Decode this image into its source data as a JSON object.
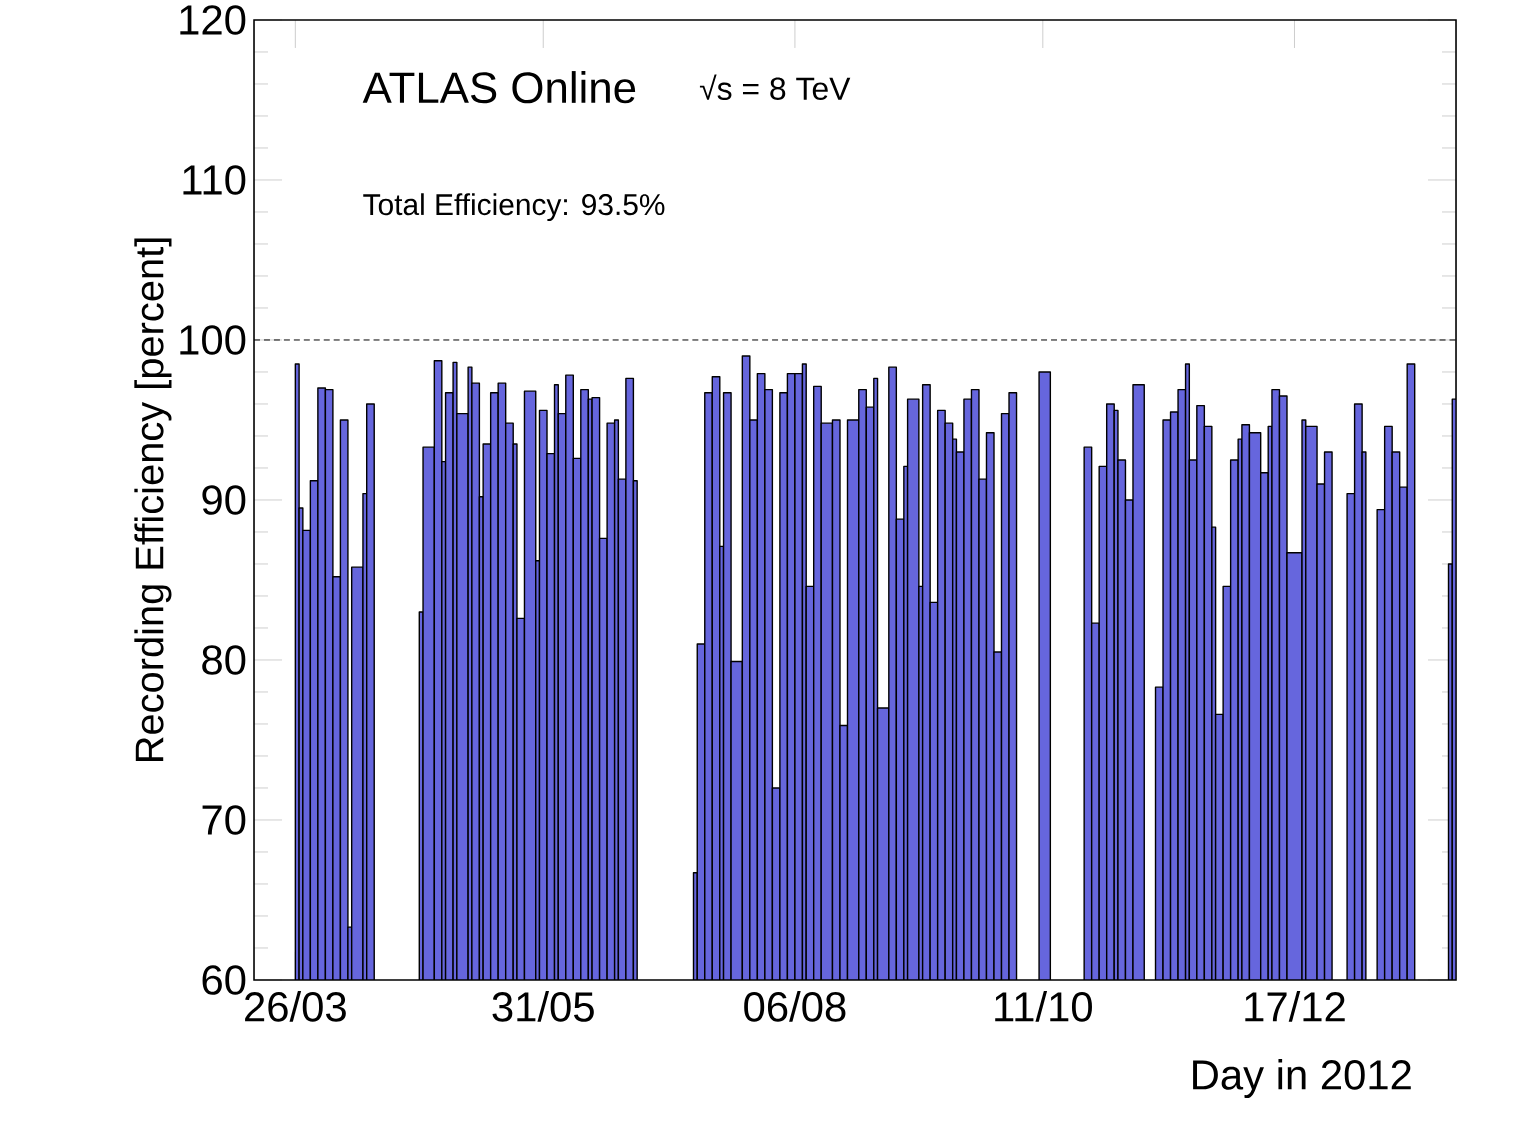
{
  "chart_data": {
    "type": "histogram",
    "xlabel": "Day in 2012",
    "ylabel": "Recording Efficiency [percent]",
    "annotations": [
      "ATLAS Online",
      "√s = 8 TeV",
      "Total Efficiency: 93.5%"
    ],
    "color": "#6666dd",
    "xlim": [
      "2012-03-15",
      "2013-01-29"
    ],
    "ylim": [
      60,
      120
    ],
    "xticks": [
      {
        "value": "2012-03-26",
        "label": "26/03"
      },
      {
        "value": "2012-05-31",
        "label": "31/05"
      },
      {
        "value": "2012-08-06",
        "label": "06/08"
      },
      {
        "value": "2012-10-11",
        "label": "11/10"
      },
      {
        "value": "2012-12-17",
        "label": "17/12"
      }
    ],
    "yticks": [
      60,
      70,
      80,
      90,
      100,
      110,
      120
    ],
    "ref_lines": [
      {
        "axis": "y",
        "value": 100,
        "line_style": "dashed"
      }
    ],
    "bins": [
      "2012-03-26",
      "2012-03-27",
      "2012-03-28",
      "2012-03-30",
      "2012-04-01",
      "2012-04-03",
      "2012-04-05",
      "2012-04-07",
      "2012-04-09",
      "2012-04-10",
      "2012-04-13",
      "2012-04-14",
      "2012-04-16",
      "2012-04-28",
      "2012-04-29",
      "2012-05-02",
      "2012-05-04",
      "2012-05-05",
      "2012-05-07",
      "2012-05-08",
      "2012-05-11",
      "2012-05-12",
      "2012-05-14",
      "2012-05-15",
      "2012-05-17",
      "2012-05-19",
      "2012-05-21",
      "2012-05-23",
      "2012-05-24",
      "2012-05-26",
      "2012-05-29",
      "2012-05-30",
      "2012-06-01",
      "2012-06-03",
      "2012-06-04",
      "2012-06-06",
      "2012-06-08",
      "2012-06-10",
      "2012-06-12",
      "2012-06-13",
      "2012-06-15",
      "2012-06-17",
      "2012-06-19",
      "2012-06-20",
      "2012-06-22",
      "2012-06-24",
      "2012-06-25",
      "2012-07-10",
      "2012-07-11",
      "2012-07-13",
      "2012-07-15",
      "2012-07-17",
      "2012-07-18",
      "2012-07-20",
      "2012-07-23",
      "2012-07-25",
      "2012-07-27",
      "2012-07-29",
      "2012-07-31",
      "2012-08-02",
      "2012-08-04",
      "2012-08-06",
      "2012-08-08",
      "2012-08-09",
      "2012-08-11",
      "2012-08-13",
      "2012-08-16",
      "2012-08-18",
      "2012-08-20",
      "2012-08-23",
      "2012-08-25",
      "2012-08-27",
      "2012-08-28",
      "2012-08-31",
      "2012-09-02",
      "2012-09-04",
      "2012-09-05",
      "2012-09-08",
      "2012-09-09",
      "2012-09-11",
      "2012-09-13",
      "2012-09-15",
      "2012-09-17",
      "2012-09-18",
      "2012-09-20",
      "2012-09-22",
      "2012-09-24",
      "2012-09-26",
      "2012-09-28",
      "2012-09-30",
      "2012-10-02",
      "2012-10-04",
      "2012-10-10",
      "2012-10-13",
      "2012-10-22",
      "2012-10-24",
      "2012-10-26",
      "2012-10-28",
      "2012-10-30",
      "2012-10-31",
      "2012-11-02",
      "2012-11-04",
      "2012-11-07",
      "2012-11-10",
      "2012-11-12",
      "2012-11-14",
      "2012-11-16",
      "2012-11-18",
      "2012-11-19",
      "2012-11-21",
      "2012-11-23",
      "2012-11-25",
      "2012-11-26",
      "2012-11-28",
      "2012-11-30",
      "2012-12-02",
      "2012-12-03",
      "2012-12-05",
      "2012-12-08",
      "2012-12-10",
      "2012-12-11",
      "2012-12-13",
      "2012-12-15",
      "2012-12-19",
      "2012-12-20",
      "2012-12-23",
      "2012-12-25",
      "2012-12-27",
      "2012-12-31",
      "2013-01-02",
      "2013-01-04",
      "2013-01-05",
      "2013-01-08",
      "2013-01-10",
      "2013-01-12",
      "2013-01-14",
      "2013-01-16",
      "2013-01-18",
      "2013-01-27",
      "2013-01-28",
      "2013-01-29"
    ],
    "values": [
      98.5,
      89.5,
      88.1,
      91.2,
      97,
      96.9,
      85.2,
      95,
      63.3,
      85.8,
      90.4,
      96,
      null,
      83,
      93.3,
      98.7,
      92.4,
      96.7,
      98.6,
      95.4,
      98.3,
      97.3,
      90.2,
      93.5,
      96.7,
      97.3,
      94.8,
      93.5,
      82.6,
      96.8,
      86.2,
      95.6,
      92.9,
      97.2,
      95.4,
      97.8,
      92.6,
      96.9,
      96.3,
      96.4,
      87.6,
      94.8,
      95,
      91.3,
      97.6,
      91.2,
      null,
      66.7,
      81,
      96.7,
      97.7,
      87.1,
      96.7,
      79.9,
      99,
      95,
      97.9,
      96.9,
      72,
      96.7,
      97.9,
      97.9,
      98.5,
      84.6,
      97.1,
      94.8,
      95,
      75.9,
      95,
      96.9,
      95.8,
      97.6,
      77,
      98.3,
      88.8,
      92.1,
      96.3,
      84.6,
      97.2,
      83.6,
      95.6,
      94.8,
      93.8,
      93,
      96.3,
      96.9,
      91.3,
      94.2,
      80.5,
      95.4,
      96.7,
      null,
      98,
      null,
      93.3,
      82.3,
      92.1,
      96,
      95.6,
      92.5,
      90,
      97.2,
      null,
      78.3,
      95,
      95.5,
      96.9,
      98.5,
      92.5,
      95.9,
      94.6,
      88.3,
      76.6,
      84.6,
      92.5,
      93.8,
      94.7,
      94.2,
      91.7,
      94.6,
      96.9,
      96.5,
      86.7,
      95,
      94.6,
      91,
      93,
      null,
      90.4,
      96,
      93,
      null,
      89.4,
      94.6,
      93,
      90.8,
      98.5,
      null,
      86,
      96.3
    ]
  }
}
